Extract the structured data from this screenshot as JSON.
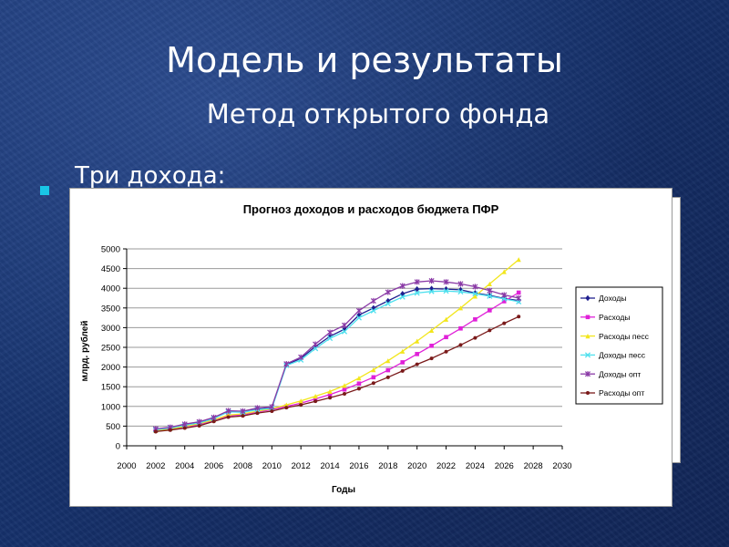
{
  "slide": {
    "title": "Модель и результаты",
    "subtitle": "Метод открытого фонда",
    "bullet": "Три дохода:",
    "accent_color": "#19c6e6"
  },
  "chart_data": {
    "type": "line",
    "title": "Прогноз доходов и расходов бюджета ПФР",
    "xlabel": "Годы",
    "ylabel": "млрд. рублей",
    "xlim": [
      2000,
      2030
    ],
    "ylim": [
      0,
      5000
    ],
    "xticks": [
      2000,
      2002,
      2004,
      2006,
      2008,
      2010,
      2012,
      2014,
      2016,
      2018,
      2020,
      2022,
      2024,
      2026,
      2028,
      2030
    ],
    "yticks": [
      0,
      500,
      1000,
      1500,
      2000,
      2500,
      3000,
      3500,
      4000,
      4500,
      5000
    ],
    "legend_position": "right",
    "x": [
      2002,
      2003,
      2004,
      2005,
      2006,
      2007,
      2008,
      2009,
      2010,
      2011,
      2012,
      2013,
      2014,
      2015,
      2016,
      2017,
      2018,
      2019,
      2020,
      2021,
      2022,
      2023,
      2024,
      2025,
      2026,
      2027
    ],
    "series": [
      {
        "name": "Доходы",
        "color": "#1f1f8f",
        "marker": "diamond",
        "values": [
          420,
          460,
          530,
          590,
          700,
          870,
          860,
          930,
          960,
          2060,
          2220,
          2520,
          2780,
          2960,
          3320,
          3500,
          3680,
          3860,
          3980,
          3990,
          3980,
          3960,
          3880,
          3820,
          3740,
          3690
        ]
      },
      {
        "name": "Расходы",
        "color": "#e020d8",
        "marker": "square",
        "values": [
          380,
          420,
          480,
          540,
          650,
          760,
          790,
          860,
          920,
          1000,
          1080,
          1190,
          1300,
          1430,
          1580,
          1740,
          1920,
          2120,
          2330,
          2540,
          2760,
          2980,
          3210,
          3440,
          3670,
          3890
        ]
      },
      {
        "name": "Расходы песс",
        "color": "#f2e61c",
        "marker": "triangle",
        "values": [
          390,
          430,
          490,
          560,
          660,
          780,
          810,
          880,
          940,
          1040,
          1140,
          1260,
          1380,
          1530,
          1720,
          1930,
          2160,
          2400,
          2660,
          2930,
          3210,
          3500,
          3800,
          4110,
          4420,
          4730
        ]
      },
      {
        "name": "Доходы песс",
        "color": "#4fe0ee",
        "marker": "x",
        "values": [
          410,
          450,
          520,
          580,
          690,
          860,
          850,
          920,
          950,
          2040,
          2180,
          2470,
          2730,
          2900,
          3250,
          3430,
          3610,
          3780,
          3880,
          3920,
          3930,
          3910,
          3860,
          3800,
          3730,
          3660
        ]
      },
      {
        "name": "Доходы опт",
        "color": "#8a3aa6",
        "marker": "star",
        "values": [
          430,
          470,
          550,
          610,
          720,
          890,
          880,
          960,
          990,
          2080,
          2250,
          2580,
          2880,
          3060,
          3430,
          3680,
          3900,
          4060,
          4160,
          4190,
          4160,
          4110,
          4040,
          3940,
          3830,
          3750
        ]
      },
      {
        "name": "Расходы опт",
        "color": "#7a1a1a",
        "marker": "circle",
        "values": [
          360,
          400,
          450,
          510,
          620,
          730,
          760,
          830,
          880,
          970,
          1040,
          1130,
          1220,
          1320,
          1450,
          1590,
          1740,
          1900,
          2070,
          2220,
          2390,
          2560,
          2740,
          2930,
          3110,
          3280
        ]
      }
    ]
  }
}
